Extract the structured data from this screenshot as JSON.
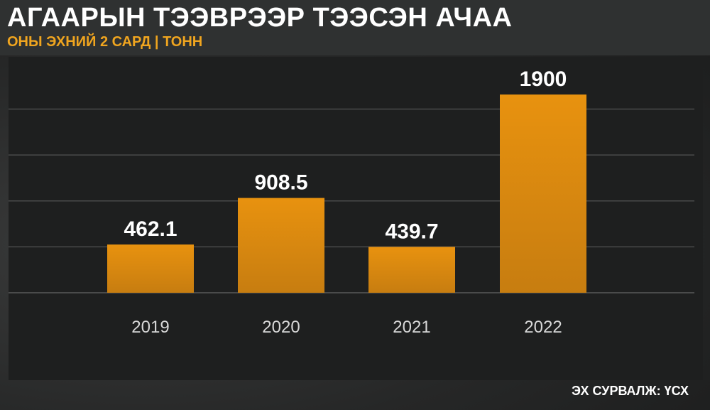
{
  "header": {
    "title": "АГААРЫН ТЭЭВРЭЭР ТЭЭСЭН АЧАА",
    "subtitle": "ОНЫ ЭХНИЙ 2 САРД | ТОНН"
  },
  "source": "ЭХ СУРВАЛЖ: ҮСХ",
  "colors": {
    "bar_top": "#e8920f",
    "bar_bottom": "#c77d10",
    "subtitle": "#f0a51f",
    "gridline": "#4a4b4b"
  },
  "chart_data": {
    "type": "bar",
    "categories": [
      "2019",
      "2020",
      "2021",
      "2022"
    ],
    "values": [
      462.1,
      908.5,
      439.7,
      1900
    ],
    "value_labels": [
      "462.1",
      "908.5",
      "439.7",
      "1900"
    ],
    "title": "АГААРЫН ТЭЭВРЭЭР ТЭЭСЭН АЧАА",
    "subtitle": "ОНЫ ЭХНИЙ 2 САРД | ТОНН",
    "xlabel": "",
    "ylabel": "",
    "ylim": [
      0,
      2000
    ],
    "grid": true,
    "legend": "none"
  }
}
